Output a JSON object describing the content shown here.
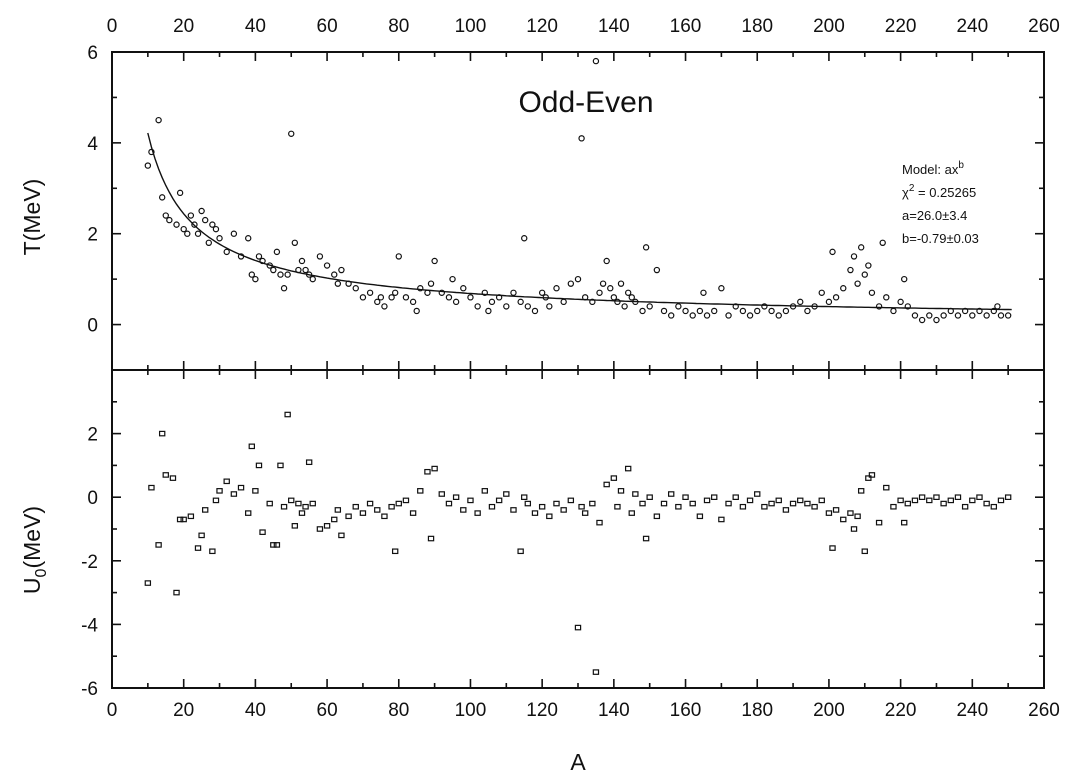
{
  "chart_data": [
    {
      "type": "scatter",
      "panel": "upper",
      "title": "Odd-Even",
      "xlabel": "",
      "ylabel": "T(MeV)",
      "xlim": [
        0,
        260
      ],
      "ylim": [
        -1,
        6
      ],
      "x_ticks": [
        0,
        20,
        40,
        60,
        80,
        100,
        120,
        140,
        160,
        180,
        200,
        220,
        240,
        260
      ],
      "y_ticks": [
        0,
        2,
        4,
        6
      ],
      "y_tick_labels": [
        "0",
        "2",
        "4",
        "6"
      ],
      "fit": {
        "model_label": "Model: ax",
        "model_exponent": "b",
        "chi_label": "χ",
        "chi_exponent": "2",
        "chi_value": " = 0.25265",
        "a_text": "a=26.0±3.4",
        "b_text": "b=-0.79±0.03",
        "a": 26.0,
        "b": -0.79
      },
      "marker": "circle",
      "series": [
        {
          "x": [
            10,
            11,
            13,
            14,
            15,
            16,
            18,
            19,
            20,
            21,
            22,
            23,
            24,
            25,
            26,
            27,
            28,
            29,
            30,
            32,
            34,
            36,
            38,
            39,
            40,
            41,
            42,
            44,
            45,
            46,
            47,
            48,
            49,
            50,
            51,
            52,
            53,
            54,
            55,
            56,
            58,
            60,
            62,
            63,
            64,
            66,
            68,
            70,
            72,
            74,
            75,
            76,
            78,
            79,
            80,
            82,
            84,
            85,
            86,
            88,
            89,
            90,
            92,
            94,
            95,
            96,
            98,
            100,
            102,
            104,
            105,
            106,
            108,
            110,
            112,
            114,
            115,
            116,
            118,
            120,
            121,
            122,
            124,
            126,
            128,
            130,
            131,
            132,
            134,
            135,
            136,
            137,
            138,
            139,
            140,
            141,
            142,
            143,
            144,
            145,
            146,
            148,
            149,
            150,
            152,
            154,
            156,
            158,
            160,
            162,
            164,
            165,
            166,
            168,
            170,
            172,
            174,
            176,
            178,
            180,
            182,
            184,
            186,
            188,
            190,
            192,
            194,
            196,
            198,
            200,
            201,
            202,
            204,
            206,
            207,
            208,
            209,
            210,
            211,
            212,
            214,
            215,
            216,
            218,
            220,
            221,
            222,
            224,
            226,
            228,
            230,
            232,
            234,
            236,
            238,
            240,
            242,
            244,
            246,
            247,
            248,
            250
          ],
          "y": [
            3.5,
            3.8,
            4.5,
            2.8,
            2.4,
            2.3,
            2.2,
            2.9,
            2.1,
            2.0,
            2.4,
            2.2,
            2.0,
            2.5,
            2.3,
            1.8,
            2.2,
            2.1,
            1.9,
            1.6,
            2.0,
            1.5,
            1.9,
            1.1,
            1.0,
            1.5,
            1.4,
            1.3,
            1.2,
            1.6,
            1.1,
            0.8,
            1.1,
            4.2,
            1.8,
            1.2,
            1.4,
            1.2,
            1.1,
            1.0,
            1.5,
            1.3,
            1.1,
            0.9,
            1.2,
            0.9,
            0.8,
            0.6,
            0.7,
            0.5,
            0.6,
            0.4,
            0.6,
            0.7,
            1.5,
            0.6,
            0.5,
            0.3,
            0.8,
            0.7,
            0.9,
            1.4,
            0.7,
            0.6,
            1.0,
            0.5,
            0.8,
            0.6,
            0.4,
            0.7,
            0.3,
            0.5,
            0.6,
            0.4,
            0.7,
            0.5,
            1.9,
            0.4,
            0.3,
            0.7,
            0.6,
            0.4,
            0.8,
            0.5,
            0.9,
            1.0,
            4.1,
            0.6,
            0.5,
            5.8,
            0.7,
            0.9,
            1.4,
            0.8,
            0.6,
            0.5,
            0.9,
            0.4,
            0.7,
            0.6,
            0.5,
            0.3,
            1.7,
            0.4,
            1.2,
            0.3,
            0.2,
            0.4,
            0.3,
            0.2,
            0.3,
            0.7,
            0.2,
            0.3,
            0.8,
            0.2,
            0.4,
            0.3,
            0.2,
            0.3,
            0.4,
            0.3,
            0.2,
            0.3,
            0.4,
            0.5,
            0.3,
            0.4,
            0.7,
            0.5,
            1.6,
            0.6,
            0.8,
            1.2,
            1.5,
            0.9,
            1.7,
            1.1,
            1.3,
            0.7,
            0.4,
            1.8,
            0.6,
            0.3,
            0.5,
            1.0,
            0.4,
            0.2,
            0.1,
            0.2,
            0.1,
            0.2,
            0.3,
            0.2,
            0.3,
            0.2,
            0.3,
            0.2,
            0.3,
            0.4,
            0.2,
            0.2
          ]
        }
      ]
    },
    {
      "type": "scatter",
      "panel": "lower",
      "title": "",
      "xlabel": "A",
      "ylabel_main": "U",
      "ylabel_subscript": "0",
      "ylabel_unit": "(MeV)",
      "xlim": [
        0,
        260
      ],
      "ylim": [
        -6,
        4
      ],
      "x_ticks": [
        0,
        20,
        40,
        60,
        80,
        100,
        120,
        140,
        160,
        180,
        200,
        220,
        240,
        260
      ],
      "y_ticks": [
        -6,
        -4,
        -2,
        0,
        2
      ],
      "y_tick_labels": [
        "-6",
        "-4",
        "-2",
        "0",
        "2"
      ],
      "marker": "square",
      "series": [
        {
          "x": [
            10,
            11,
            13,
            14,
            15,
            17,
            18,
            19,
            20,
            22,
            24,
            25,
            26,
            28,
            29,
            30,
            32,
            34,
            36,
            38,
            39,
            40,
            41,
            42,
            44,
            45,
            46,
            47,
            48,
            49,
            50,
            51,
            52,
            53,
            54,
            55,
            56,
            58,
            60,
            62,
            63,
            64,
            66,
            68,
            70,
            72,
            74,
            76,
            78,
            79,
            80,
            82,
            84,
            86,
            88,
            89,
            90,
            92,
            94,
            96,
            98,
            100,
            102,
            104,
            106,
            108,
            110,
            112,
            114,
            115,
            116,
            118,
            120,
            122,
            124,
            126,
            128,
            130,
            131,
            132,
            134,
            135,
            136,
            138,
            140,
            141,
            142,
            144,
            145,
            146,
            148,
            149,
            150,
            152,
            154,
            156,
            158,
            160,
            162,
            164,
            166,
            168,
            170,
            172,
            174,
            176,
            178,
            180,
            182,
            184,
            186,
            188,
            190,
            192,
            194,
            196,
            198,
            200,
            201,
            202,
            204,
            206,
            207,
            208,
            209,
            210,
            211,
            212,
            214,
            216,
            218,
            220,
            221,
            222,
            224,
            226,
            228,
            230,
            232,
            234,
            236,
            238,
            240,
            242,
            244,
            246,
            248,
            250
          ],
          "y": [
            -2.7,
            0.3,
            -1.5,
            2.0,
            0.7,
            0.6,
            -3.0,
            -0.7,
            -0.7,
            -0.6,
            -1.6,
            -1.2,
            -0.4,
            -1.7,
            -0.1,
            0.2,
            0.5,
            0.1,
            0.3,
            -0.5,
            1.6,
            0.2,
            1.0,
            -1.1,
            -0.2,
            -1.5,
            -1.5,
            1.0,
            -0.3,
            2.6,
            -0.1,
            -0.9,
            -0.2,
            -0.5,
            -0.3,
            1.1,
            -0.2,
            -1.0,
            -0.9,
            -0.7,
            -0.4,
            -1.2,
            -0.6,
            -0.3,
            -0.5,
            -0.2,
            -0.4,
            -0.6,
            -0.3,
            -1.7,
            -0.2,
            -0.1,
            -0.5,
            0.2,
            0.8,
            -1.3,
            0.9,
            0.1,
            -0.2,
            0.0,
            -0.4,
            -0.1,
            -0.5,
            0.2,
            -0.3,
            -0.1,
            0.1,
            -0.4,
            -1.7,
            0.0,
            -0.2,
            -0.5,
            -0.3,
            -0.6,
            -0.2,
            -0.4,
            -0.1,
            -4.1,
            -0.3,
            -0.5,
            -0.2,
            -5.5,
            -0.8,
            0.4,
            0.6,
            -0.3,
            0.2,
            0.9,
            -0.5,
            0.1,
            -0.2,
            -1.3,
            0.0,
            -0.6,
            -0.2,
            0.1,
            -0.3,
            0.0,
            -0.2,
            -0.6,
            -0.1,
            0.0,
            -0.7,
            -0.2,
            0.0,
            -0.3,
            -0.1,
            0.1,
            -0.3,
            -0.2,
            -0.1,
            -0.4,
            -0.2,
            -0.1,
            -0.2,
            -0.3,
            -0.1,
            -0.5,
            -1.6,
            -0.4,
            -0.7,
            -0.5,
            -1.0,
            -0.6,
            0.2,
            -1.7,
            0.6,
            0.7,
            -0.8,
            0.3,
            -0.3,
            -0.1,
            -0.8,
            -0.2,
            -0.1,
            0.0,
            -0.1,
            0.0,
            -0.2,
            -0.1,
            0.0,
            -0.3,
            -0.1,
            0.0,
            -0.2,
            -0.3,
            -0.1,
            0.0
          ]
        }
      ]
    }
  ]
}
